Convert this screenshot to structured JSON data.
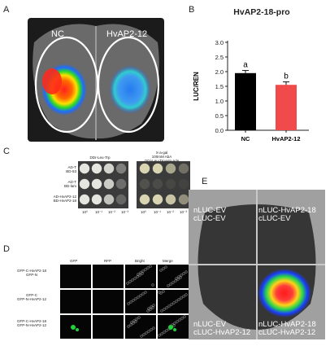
{
  "panels": {
    "A": {
      "letter": "A",
      "label_left": "NC",
      "label_right": "HvAP2-12"
    },
    "B": {
      "letter": "B"
    },
    "C": {
      "letter": "C",
      "header_left": "DDr-Leu-Trp",
      "header_right_lines": [
        "X-a-gal",
        "100mM AbA",
        "QD/-Leu-Trp-His-Ade"
      ],
      "rows": [
        {
          "line1": "AD-T",
          "line2": "BD-53"
        },
        {
          "line1": "AD-T",
          "line2": "BD-lam"
        },
        {
          "line1": "AD-HvAP2-12",
          "line2": "BD-HvAP2-18"
        }
      ],
      "dilutions_left": [
        "10⁰",
        "10⁻¹",
        "10⁻²",
        "10⁻³"
      ],
      "dilutions_right": [
        "10⁰",
        "10⁻¹",
        "10⁻²",
        "10⁻³"
      ]
    },
    "D": {
      "letter": "D",
      "columns": [
        "GFP",
        "RFP",
        "Bright",
        "Merge"
      ],
      "rows": [
        {
          "line1": "GFP-C-HvAP2-18",
          "line2": "GFP-N"
        },
        {
          "line1": "GFP-C",
          "line2": "GFP-N-HvAP2-12"
        },
        {
          "line1": "GFP-C-HvAP2-18",
          "line2": "GFP-N-HvAP2-12"
        }
      ]
    },
    "E": {
      "letter": "E",
      "q_top_left": [
        "nLUC-EV",
        "cLUC-EV"
      ],
      "q_top_right": [
        "nLUC-HvAP2-18",
        "cLUC-EV"
      ],
      "q_bottom_left": [
        "nLUC-EV",
        "cLUC-HvAP2-12"
      ],
      "q_bottom_right": [
        "nLUC-HvAP2-18",
        "cLUC-HvAP2-12"
      ]
    }
  },
  "chart_data": {
    "type": "bar",
    "title": "HvAP2-18-pro",
    "ylabel": "LUC/REN",
    "categories": [
      "NC",
      "HvAP2-12"
    ],
    "values": [
      1.95,
      1.55
    ],
    "errors": [
      0.09,
      0.1
    ],
    "significance": [
      "a",
      "b"
    ],
    "colors": [
      "#000000",
      "#f04a4a"
    ],
    "ylim": [
      0,
      3
    ],
    "yticks": [
      "0.0",
      "0.5",
      "1.0",
      "1.5",
      "2.0",
      "2.5",
      "3.0"
    ]
  }
}
